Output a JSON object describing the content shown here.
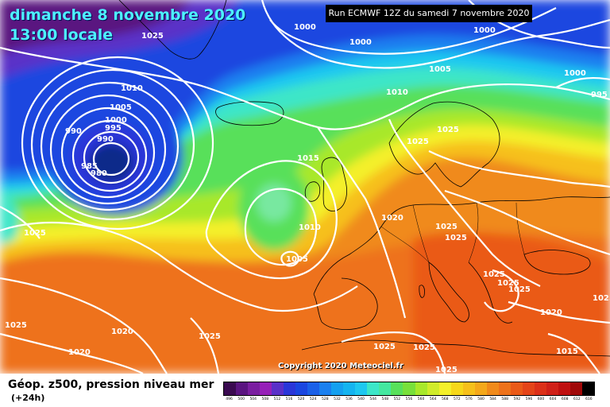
{
  "header": {
    "date": "dimanche 8 novembre 2020",
    "time": "13:00 locale",
    "run": "Run ECMWF 12Z du samedi 7 novembre 2020"
  },
  "footer": {
    "copyright": "Copyright 2020 Meteociel.fr",
    "field_title": "Géop. z500, pression niveau mer",
    "field_subtitle": "(+24h)"
  },
  "colors": {
    "low_core": "#0a2a8a",
    "deep_blue": "#0050d0",
    "cyan": "#14b4f0",
    "teal": "#3ce6c8",
    "green": "#58e05a",
    "lime": "#a8e82a",
    "yellow": "#f4f02a",
    "gold": "#f6c01a",
    "orange": "#f08a1a",
    "red_orange": "#ea5a18",
    "purple": "#5a1480"
  },
  "legend": {
    "values": [
      "496",
      "500",
      "504",
      "508",
      "512",
      "516",
      "520",
      "524",
      "528",
      "532",
      "536",
      "540",
      "544",
      "548",
      "552",
      "556",
      "560",
      "564",
      "568",
      "572",
      "576",
      "580",
      "584",
      "588",
      "592",
      "596",
      "600",
      "604",
      "608",
      "612",
      "616"
    ],
    "colors": [
      "#3a0a50",
      "#5a1480",
      "#7a1ea0",
      "#9620b8",
      "#5a30c8",
      "#2a36d8",
      "#1a46e0",
      "#1a60e8",
      "#1a80f0",
      "#14a0f0",
      "#14b4f0",
      "#1ec8f0",
      "#3ce6c8",
      "#44e8a0",
      "#58e05a",
      "#78e03a",
      "#a8e82a",
      "#d0ec2a",
      "#f4f02a",
      "#f6d81a",
      "#f6c01a",
      "#f4a81a",
      "#f08a1a",
      "#ee721a",
      "#ea5a18",
      "#e44418",
      "#dc3018",
      "#d02018",
      "#c01010",
      "#a00808",
      "#000000"
    ]
  },
  "isobar_labels": [
    {
      "text": "1025"
    },
    {
      "text": "1000"
    },
    {
      "text": "1000"
    },
    {
      "text": "1000"
    },
    {
      "text": "1005"
    },
    {
      "text": "1000"
    },
    {
      "text": "995"
    },
    {
      "text": "1010"
    },
    {
      "text": "1010"
    },
    {
      "text": "1005"
    },
    {
      "text": "1000"
    },
    {
      "text": "995"
    },
    {
      "text": "990"
    },
    {
      "text": "990"
    },
    {
      "text": "985"
    },
    {
      "text": "980"
    },
    {
      "text": "1025"
    },
    {
      "text": "1025"
    },
    {
      "text": "1015"
    },
    {
      "text": "1010"
    },
    {
      "text": "1005"
    },
    {
      "text": "1020"
    },
    {
      "text": "1025"
    },
    {
      "text": "1025"
    },
    {
      "text": "1025"
    },
    {
      "text": "1025"
    },
    {
      "text": "1025"
    },
    {
      "text": "1020"
    },
    {
      "text": "1025"
    },
    {
      "text": "1025"
    },
    {
      "text": "1020"
    },
    {
      "text": "1020"
    },
    {
      "text": "1025"
    },
    {
      "text": "1025"
    },
    {
      "text": "1025"
    },
    {
      "text": "1015"
    },
    {
      "text": "1025"
    },
    {
      "text": "1025"
    }
  ]
}
